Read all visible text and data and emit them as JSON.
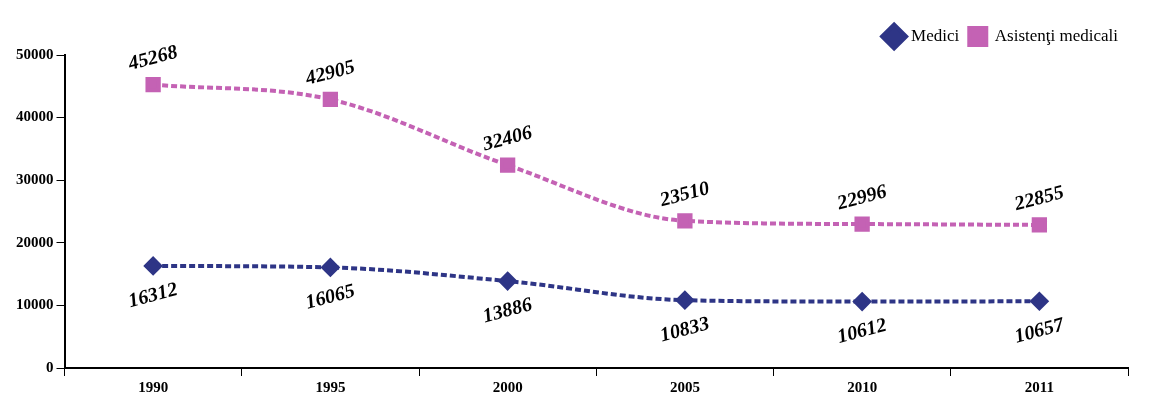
{
  "chart_data": {
    "type": "line",
    "categories": [
      "1990",
      "1995",
      "2000",
      "2005",
      "2010",
      "2011"
    ],
    "series": [
      {
        "name": "Medici",
        "color": "#2e3586",
        "marker": "diamond",
        "values": [
          16312,
          16065,
          13886,
          10833,
          10612,
          10657
        ]
      },
      {
        "name": "Asistenţi medicali",
        "color": "#c462b4",
        "marker": "square",
        "values": [
          45268,
          42905,
          32406,
          23510,
          22996,
          22855
        ]
      }
    ],
    "ylim": [
      0,
      50000
    ],
    "yticks": [
      0,
      10000,
      20000,
      30000,
      40000,
      50000
    ],
    "grid": false,
    "legend": "top right",
    "line_style": "dashed",
    "data_labels": true
  }
}
